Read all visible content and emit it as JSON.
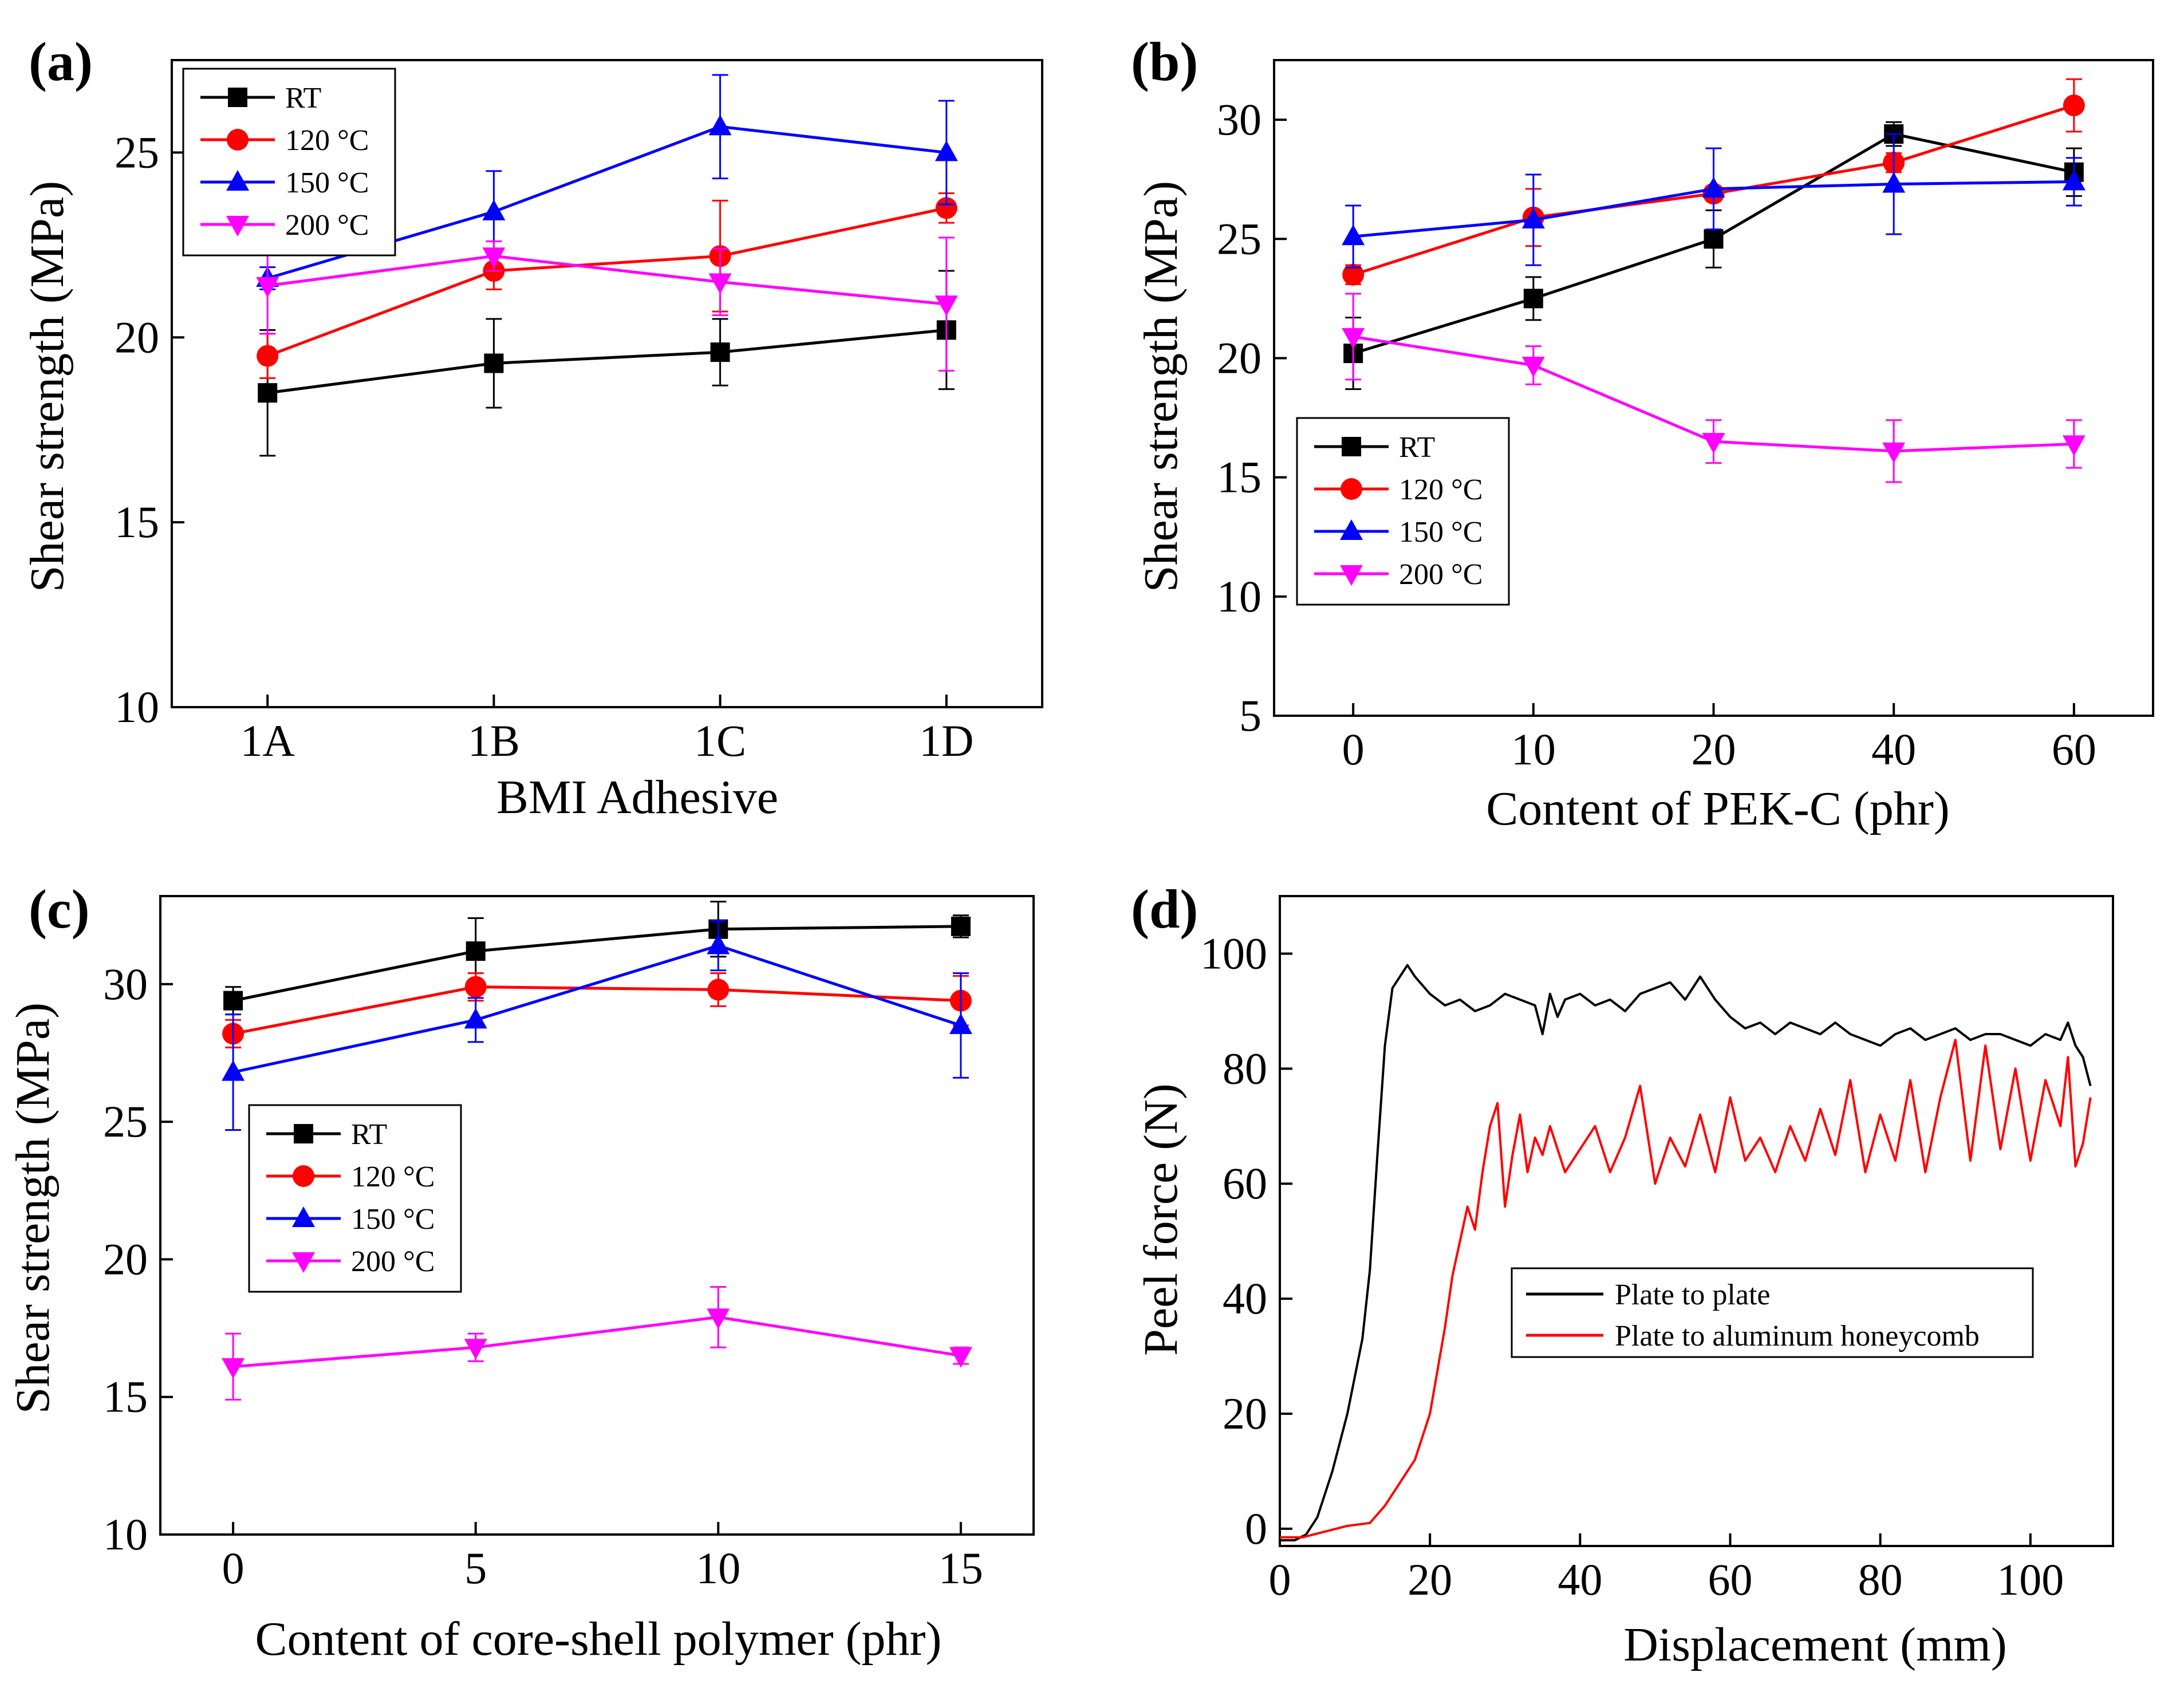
{
  "figure": {
    "panels": [
      "(a)",
      "(b)",
      "(c)",
      "(d)"
    ]
  },
  "colors": {
    "RT": "#000000",
    "120": "#ff0000",
    "150": "#0000ff",
    "200": "#ff00ff"
  },
  "chart_data": [
    {
      "id": "a",
      "type": "line",
      "panel_label": "(a)",
      "xlabel": "BMI Adhesive",
      "ylabel": "Shear strength (MPa)",
      "categories": [
        "1A",
        "1B",
        "1C",
        "1D"
      ],
      "ylim": [
        10,
        27.5
      ],
      "yticks": [
        10,
        15,
        20,
        25
      ],
      "legend": "top-left",
      "series": [
        {
          "name": "RT",
          "color": "#000000",
          "marker": "square",
          "values": [
            18.5,
            19.3,
            19.6,
            20.2
          ],
          "errors": [
            1.7,
            1.2,
            0.9,
            1.6
          ]
        },
        {
          "name": "120 °C",
          "color": "#ff0000",
          "marker": "circle",
          "values": [
            19.5,
            21.8,
            22.2,
            23.5
          ],
          "errors": [
            0.6,
            0.5,
            1.5,
            0.4
          ]
        },
        {
          "name": "150 °C",
          "color": "#0000ff",
          "marker": "triangle-up",
          "values": [
            21.6,
            23.4,
            25.7,
            25.0
          ],
          "errors": [
            0.3,
            1.1,
            1.4,
            1.4
          ]
        },
        {
          "name": "200 °C",
          "color": "#ff00ff",
          "marker": "triangle-down",
          "values": [
            21.4,
            22.2,
            21.5,
            20.9
          ],
          "errors": [
            1.3,
            0.4,
            0.9,
            1.8
          ]
        }
      ]
    },
    {
      "id": "b",
      "type": "line",
      "panel_label": "(b)",
      "xlabel": "Content of PEK-C (phr)",
      "ylabel": "Shear strength (MPa)",
      "categories": [
        "0",
        "10",
        "20",
        "40",
        "60"
      ],
      "ylim": [
        5,
        32.5
      ],
      "yticks": [
        5,
        10,
        15,
        20,
        25,
        30
      ],
      "legend": "middle-left",
      "series": [
        {
          "name": "RT",
          "color": "#000000",
          "marker": "square",
          "values": [
            20.2,
            22.5,
            25.0,
            29.4,
            27.8
          ],
          "errors": [
            1.5,
            0.9,
            1.2,
            0.5,
            1.0
          ]
        },
        {
          "name": "120 °C",
          "color": "#ff0000",
          "marker": "circle",
          "values": [
            23.5,
            25.9,
            26.9,
            28.2,
            30.6
          ],
          "errors": [
            0.4,
            1.2,
            0.3,
            0.4,
            1.1
          ]
        },
        {
          "name": "150 °C",
          "color": "#0000ff",
          "marker": "triangle-up",
          "values": [
            25.1,
            25.8,
            27.1,
            27.3,
            27.4
          ],
          "errors": [
            1.3,
            1.9,
            1.7,
            2.1,
            1.0
          ]
        },
        {
          "name": "200 °C",
          "color": "#ff00ff",
          "marker": "triangle-down",
          "values": [
            20.9,
            19.7,
            16.5,
            16.1,
            16.4
          ],
          "errors": [
            1.8,
            0.8,
            0.9,
            1.3,
            1.0
          ]
        }
      ]
    },
    {
      "id": "c",
      "type": "line",
      "panel_label": "(c)",
      "xlabel": "Content of core-shell polymer (phr)",
      "ylabel": "Shear strength (MPa)",
      "x": [
        0,
        5,
        10,
        15
      ],
      "xlim": [
        -1.5,
        16.5
      ],
      "xticks": [
        0,
        5,
        10,
        15
      ],
      "ylim": [
        10,
        33.2
      ],
      "yticks": [
        10,
        15,
        20,
        25,
        30
      ],
      "legend": "middle-left",
      "series": [
        {
          "name": "RT",
          "color": "#000000",
          "marker": "square",
          "values": [
            29.4,
            31.2,
            32.0,
            32.1
          ],
          "errors": [
            0.5,
            1.2,
            1.0,
            0.4
          ]
        },
        {
          "name": "120 °C",
          "color": "#ff0000",
          "marker": "circle",
          "values": [
            28.2,
            29.9,
            29.8,
            29.4
          ],
          "errors": [
            0.5,
            0.5,
            0.6,
            0.9
          ]
        },
        {
          "name": "150 °C",
          "color": "#0000ff",
          "marker": "triangle-up",
          "values": [
            26.8,
            28.7,
            31.4,
            28.5
          ],
          "errors": [
            2.1,
            0.8,
            0.9,
            1.9
          ]
        },
        {
          "name": "200 °C",
          "color": "#ff00ff",
          "marker": "triangle-down",
          "values": [
            16.1,
            16.8,
            17.9,
            16.5
          ],
          "errors": [
            1.2,
            0.5,
            1.1,
            0.3
          ]
        }
      ]
    },
    {
      "id": "d",
      "type": "line",
      "panel_label": "(d)",
      "xlabel": "Displacement (mm)",
      "ylabel": "Peel force (N)",
      "xlim": [
        0,
        111
      ],
      "xticks": [
        0,
        20,
        40,
        60,
        80,
        100
      ],
      "ylim": [
        -3,
        110
      ],
      "yticks": [
        0,
        20,
        40,
        60,
        80,
        100
      ],
      "legend": "bottom-right",
      "series": [
        {
          "name": "Plate to plate",
          "color": "#000000",
          "x": [
            0,
            2,
            3.5,
            5,
            7,
            9,
            11,
            12,
            13,
            14,
            15,
            16,
            17,
            18,
            20,
            22,
            24,
            26,
            28,
            30,
            32,
            34,
            35,
            36,
            37,
            38,
            40,
            42,
            44,
            46,
            48,
            50,
            52,
            54,
            56,
            58,
            60,
            62,
            64,
            66,
            68,
            70,
            72,
            74,
            76,
            78,
            80,
            82,
            84,
            86,
            88,
            90,
            92,
            94,
            96,
            98,
            100,
            102,
            104,
            105,
            106,
            107,
            108
          ],
          "y": [
            -2,
            -2,
            -1,
            2,
            10,
            20,
            33,
            45,
            65,
            84,
            94,
            96,
            98,
            96,
            93,
            91,
            92,
            90,
            91,
            93,
            92,
            91,
            86,
            93,
            89,
            92,
            93,
            91,
            92,
            90,
            93,
            94,
            95,
            92,
            96,
            92,
            89,
            87,
            88,
            86,
            88,
            87,
            86,
            88,
            86,
            85,
            84,
            86,
            87,
            85,
            86,
            87,
            85,
            86,
            86,
            85,
            84,
            86,
            85,
            88,
            84,
            82,
            77
          ]
        },
        {
          "name": "Plate to aluminum honeycomb",
          "color": "#ff0000",
          "x": [
            0,
            3,
            6,
            9,
            12,
            14,
            16,
            18,
            20,
            22,
            23,
            24,
            25,
            26,
            27,
            28,
            29,
            30,
            31,
            32,
            33,
            34,
            35,
            36,
            38,
            40,
            42,
            44,
            46,
            48,
            50,
            52,
            54,
            56,
            58,
            60,
            62,
            64,
            66,
            68,
            70,
            72,
            74,
            76,
            78,
            80,
            82,
            84,
            86,
            88,
            90,
            92,
            94,
            96,
            98,
            100,
            102,
            104,
            105,
            106,
            107,
            108
          ],
          "y": [
            -1.5,
            -1.5,
            -0.5,
            0.5,
            1,
            4,
            8,
            12,
            20,
            35,
            44,
            50,
            56,
            52,
            62,
            70,
            74,
            56,
            65,
            72,
            62,
            68,
            65,
            70,
            62,
            66,
            70,
            62,
            68,
            77,
            60,
            68,
            63,
            72,
            62,
            75,
            64,
            68,
            62,
            70,
            64,
            73,
            65,
            78,
            62,
            72,
            64,
            78,
            62,
            75,
            85,
            64,
            84,
            66,
            80,
            64,
            78,
            70,
            82,
            63,
            67,
            75
          ]
        }
      ]
    }
  ]
}
